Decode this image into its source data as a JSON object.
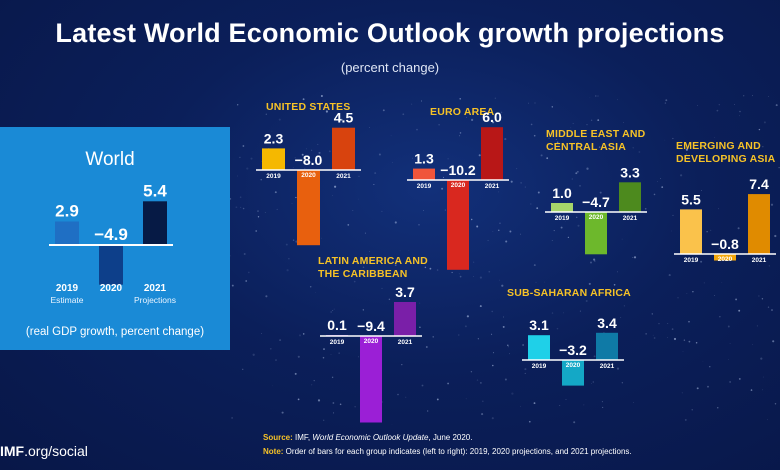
{
  "header": {
    "title": "Latest World Economic Outlook growth projections",
    "subtitle": "(percent change)"
  },
  "world_card": {
    "title": "World",
    "note": "(real GDP growth, percent change)",
    "sublabels": [
      "Estimate",
      "",
      "Projections"
    ]
  },
  "footer": {
    "source_label": "Source:",
    "source_text_a": " IMF, ",
    "source_text_italic": "World Economic Outlook Update",
    "source_text_b": ", June 2020.",
    "note_label": "Note:",
    "note_text": " Order of bars for each group indicates (left to right): 2019, 2020 projections, and 2021 projections.",
    "brand_bold": "IMF",
    "brand_rest": ".org/social"
  },
  "colors": {
    "background": "#0b1f5a",
    "world_card": "#1a8ad6",
    "region_label": "#f6c227"
  },
  "chart_data": [
    {
      "type": "bar",
      "title": "World",
      "categories": [
        "2019",
        "2020",
        "2021"
      ],
      "values": [
        2.9,
        -4.9,
        5.4
      ],
      "value_labels": [
        "2.9",
        "−4.9",
        "5.4"
      ],
      "colors": [
        "#1f6fc4",
        "#0d3f8a",
        "#061a45"
      ]
    },
    {
      "type": "bar",
      "title": "UNITED STATES",
      "categories": [
        "2019",
        "2020",
        "2021"
      ],
      "values": [
        2.3,
        -8.0,
        4.5
      ],
      "value_labels": [
        "2.3",
        "−8.0",
        "4.5"
      ],
      "colors": [
        "#f5b800",
        "#e8600e",
        "#d8430e"
      ]
    },
    {
      "type": "bar",
      "title": "EURO AREA",
      "categories": [
        "2019",
        "2020",
        "2021"
      ],
      "values": [
        1.3,
        -10.2,
        6.0
      ],
      "value_labels": [
        "1.3",
        "−10.2",
        "6.0"
      ],
      "colors": [
        "#f0553a",
        "#d9281f",
        "#b81717"
      ]
    },
    {
      "type": "bar",
      "title": "MIDDLE EAST AND CENTRAL ASIA",
      "categories": [
        "2019",
        "2020",
        "2021"
      ],
      "values": [
        1.0,
        -4.7,
        3.3
      ],
      "value_labels": [
        "1.0",
        "−4.7",
        "3.3"
      ],
      "colors": [
        "#a6d66a",
        "#6db82c",
        "#4d8a1e"
      ]
    },
    {
      "type": "bar",
      "title": "EMERGING AND DEVELOPING ASIA",
      "categories": [
        "2019",
        "2020",
        "2021"
      ],
      "values": [
        5.5,
        -0.8,
        7.4
      ],
      "value_labels": [
        "5.5",
        "−0.8",
        "7.4"
      ],
      "colors": [
        "#fac24b",
        "#f2a60c",
        "#e08b00"
      ]
    },
    {
      "type": "bar",
      "title": "LATIN AMERICA AND THE CARIBBEAN",
      "categories": [
        "2019",
        "2020",
        "2021"
      ],
      "values": [
        0.1,
        -9.4,
        3.7
      ],
      "value_labels": [
        "0.1",
        "−9.4",
        "3.7"
      ],
      "colors": [
        "#b968e0",
        "#9b1fd6",
        "#7a1fa8"
      ]
    },
    {
      "type": "bar",
      "title": "SUB-SAHARAN AFRICA",
      "categories": [
        "2019",
        "2020",
        "2021"
      ],
      "values": [
        3.1,
        -3.2,
        3.4
      ],
      "value_labels": [
        "3.1",
        "−3.2",
        "3.4"
      ],
      "colors": [
        "#1fd0e8",
        "#14a8c6",
        "#0f7aa6"
      ]
    }
  ]
}
